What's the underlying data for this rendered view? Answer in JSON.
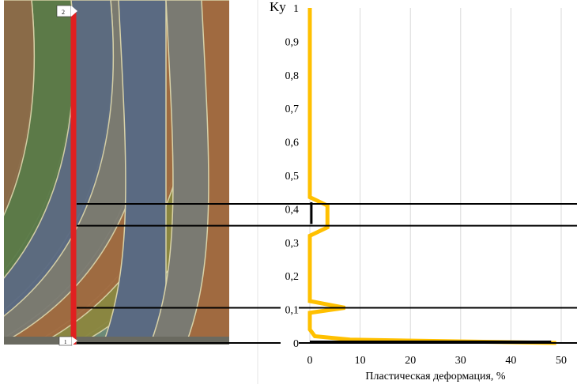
{
  "figure": {
    "left_panel": {
      "description_label": "",
      "markers": [
        "2",
        "1"
      ],
      "band_colors": [
        "#8a8640",
        "#6b8a7a",
        "#8a6a48",
        "#5a7a48",
        "#5a6a82",
        "#7a7a72",
        "#a06a40",
        "#d8d2a8"
      ],
      "path_line_color": "#e02020"
    },
    "connector_line_color": "#000000"
  },
  "chart_data": {
    "type": "line",
    "title": "",
    "xlabel": "Пластическая деформация, %",
    "ylabel": "Ky",
    "xlim": [
      0,
      50
    ],
    "ylim": [
      0,
      1
    ],
    "x_ticks": [
      "0",
      "10",
      "20",
      "30",
      "40",
      "50"
    ],
    "y_ticks": [
      "0",
      "0,1",
      "0,2",
      "0,3",
      "0,4",
      "0,5",
      "0,6",
      "0,7",
      "0,8",
      "0,9",
      "1"
    ],
    "grid": "vertical",
    "series": [
      {
        "color": "#ffc000",
        "points": [
          [
            49,
            0.0
          ],
          [
            8,
            0.01
          ],
          [
            1,
            0.02
          ],
          [
            0,
            0.04
          ],
          [
            0,
            0.09
          ],
          [
            7,
            0.105
          ],
          [
            0,
            0.125
          ],
          [
            0,
            0.32
          ],
          [
            3.5,
            0.345
          ],
          [
            3.5,
            0.41
          ],
          [
            0,
            0.435
          ],
          [
            0,
            1.0
          ]
        ]
      }
    ],
    "annotations": [
      {
        "type": "vertical-bar",
        "x": 0.3,
        "y_range": [
          0.355,
          0.42
        ],
        "color": "#000000"
      }
    ],
    "reference_lines_y": [
      0.0,
      0.105,
      0.35,
      0.415
    ]
  }
}
